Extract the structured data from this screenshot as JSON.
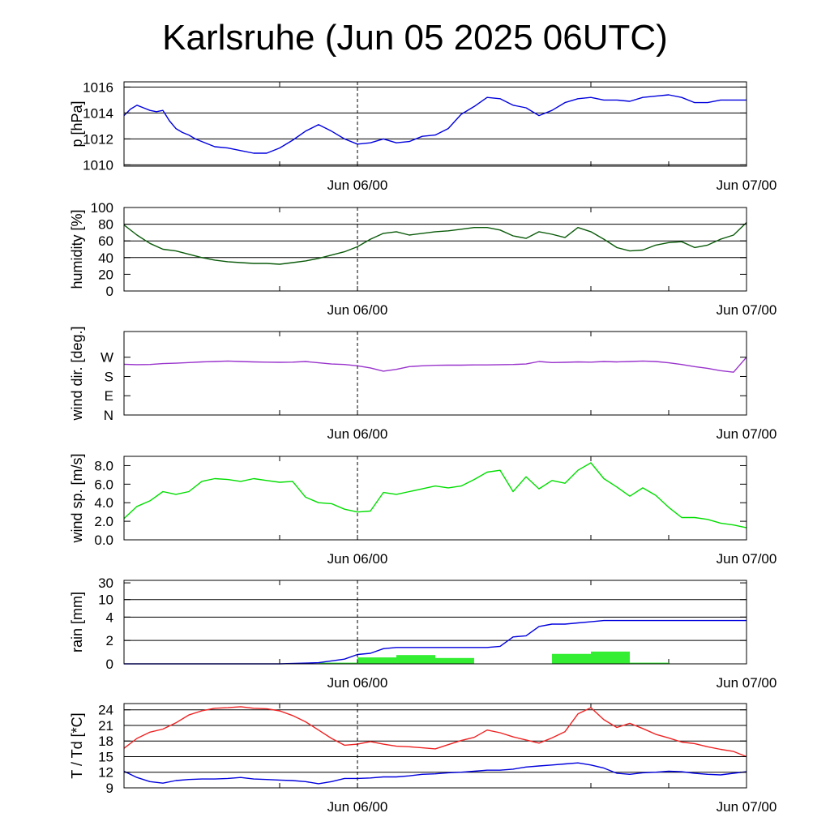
{
  "title": "Karlsruhe (Jun 05 2025 06UTC)",
  "chart_data": [
    {
      "type": "line",
      "ylabel": "p [hPa]",
      "x_ticks": [
        "Jun 06/00",
        "Jun 07/00"
      ],
      "ylim": [
        1009.9,
        1016.4
      ],
      "y_ticks": [
        1010,
        1012,
        1014,
        1016
      ],
      "y_tick_labels": [
        "1010",
        "1012",
        "1014",
        "1016"
      ],
      "grid_lines": [
        1010,
        1012,
        1014,
        1016
      ],
      "series": [
        {
          "color": "#0000dd",
          "x": [
            0,
            0.5,
            1,
            1.5,
            2,
            2.5,
            3,
            3.5,
            4,
            4.5,
            5,
            5.5,
            6,
            7,
            8,
            9,
            10,
            11,
            12,
            13,
            14,
            15,
            16,
            17,
            18,
            19,
            20,
            21,
            22,
            23,
            24,
            25,
            26,
            27,
            28,
            29,
            30,
            31,
            32,
            33,
            34,
            35,
            36,
            37,
            38,
            39,
            40,
            41,
            42,
            43,
            44,
            45,
            46,
            47,
            48
          ],
          "y": [
            1013.8,
            1014.3,
            1014.6,
            1014.4,
            1014.2,
            1014.1,
            1014.2,
            1013.4,
            1012.8,
            1012.5,
            1012.3,
            1012.0,
            1011.8,
            1011.4,
            1011.3,
            1011.1,
            1010.9,
            1010.9,
            1011.3,
            1011.9,
            1012.6,
            1013.1,
            1012.6,
            1012.0,
            1011.6,
            1011.7,
            1012.0,
            1011.7,
            1011.8,
            1012.2,
            1012.3,
            1012.8,
            1013.9,
            1014.5,
            1015.2,
            1015.1,
            1014.6,
            1014.4,
            1013.8,
            1014.2,
            1014.8,
            1015.1,
            1015.2,
            1015.0,
            1015.0,
            1014.9,
            1015.2,
            1015.3,
            1015.4,
            1015.2,
            1014.8,
            1014.8,
            1015.0,
            1015.0,
            1015.0
          ]
        }
      ]
    },
    {
      "type": "line",
      "ylabel": "humidity [%]",
      "x_ticks": [
        "Jun 06/00",
        "Jun 07/00"
      ],
      "ylim": [
        0,
        100
      ],
      "y_ticks": [
        0,
        20,
        40,
        60,
        80,
        100
      ],
      "y_tick_labels": [
        "0",
        "20",
        "40",
        "60",
        "80",
        "100"
      ],
      "grid_lines": [
        40,
        60,
        80
      ],
      "series": [
        {
          "color": "#0a5a0a",
          "x": [
            0,
            1,
            2,
            3,
            4,
            5,
            6,
            7,
            8,
            9,
            10,
            11,
            12,
            13,
            14,
            15,
            16,
            17,
            18,
            19,
            20,
            21,
            22,
            23,
            24,
            25,
            26,
            27,
            28,
            29,
            30,
            31,
            32,
            33,
            34,
            35,
            36,
            37,
            38,
            39,
            40,
            41,
            42,
            43,
            44,
            45,
            46,
            47,
            48
          ],
          "y": [
            79,
            67,
            57,
            50,
            48,
            44,
            40,
            37,
            35,
            34,
            33,
            33,
            32,
            34,
            36,
            39,
            43,
            47,
            53,
            62,
            69,
            71,
            67,
            69,
            71,
            72,
            74,
            76,
            76,
            73,
            66,
            63,
            71,
            68,
            64,
            76,
            71,
            62,
            52,
            48,
            49,
            55,
            58,
            59,
            52,
            55,
            62,
            67,
            82
          ]
        }
      ]
    },
    {
      "type": "line",
      "ylabel": "wind dir. [deg.]",
      "x_ticks": [
        "Jun 06/00",
        "Jun 07/00"
      ],
      "ylim": [
        0,
        390
      ],
      "y_ticks": [
        0,
        90,
        180,
        270
      ],
      "y_tick_labels": [
        "N",
        "E",
        "S",
        "W"
      ],
      "grid_lines": [],
      "series": [
        {
          "color": "#9933cc",
          "x": [
            0,
            1,
            2,
            3,
            4,
            5,
            6,
            7,
            8,
            9,
            10,
            11,
            12,
            13,
            14,
            15,
            16,
            17,
            18,
            19,
            20,
            21,
            22,
            23,
            24,
            25,
            26,
            27,
            28,
            29,
            30,
            31,
            32,
            33,
            34,
            35,
            36,
            37,
            38,
            39,
            40,
            41,
            42,
            43,
            44,
            45,
            46,
            47,
            48
          ],
          "y": [
            237,
            235,
            236,
            240,
            242,
            245,
            248,
            250,
            252,
            250,
            248,
            247,
            246,
            247,
            250,
            244,
            238,
            236,
            230,
            220,
            205,
            213,
            226,
            230,
            232,
            233,
            233,
            234,
            234,
            235,
            236,
            238,
            250,
            245,
            246,
            248,
            247,
            250,
            248,
            250,
            252,
            250,
            244,
            236,
            226,
            218,
            207,
            200,
            270
          ]
        }
      ]
    },
    {
      "type": "line",
      "ylabel": "wind sp. [m/s]",
      "x_ticks": [
        "Jun 06/00",
        "Jun 07/00"
      ],
      "ylim": [
        0,
        9
      ],
      "y_ticks": [
        0,
        2,
        4,
        6,
        8
      ],
      "y_tick_labels": [
        "0.0",
        "2.0",
        "4.0",
        "6.0",
        "8.0"
      ],
      "grid_lines": [],
      "series": [
        {
          "color": "#00dd00",
          "x": [
            0,
            1,
            2,
            3,
            4,
            5,
            6,
            7,
            8,
            9,
            10,
            11,
            12,
            13,
            14,
            15,
            16,
            17,
            18,
            19,
            20,
            21,
            22,
            23,
            24,
            25,
            26,
            27,
            28,
            29,
            30,
            31,
            32,
            33,
            34,
            35,
            36,
            37,
            38,
            39,
            40,
            41,
            42,
            43,
            44,
            45,
            46,
            47,
            48
          ],
          "y": [
            2.3,
            3.6,
            4.2,
            5.2,
            4.9,
            5.2,
            6.3,
            6.6,
            6.5,
            6.3,
            6.6,
            6.4,
            6.2,
            6.3,
            4.6,
            4.0,
            3.9,
            3.3,
            3.0,
            3.1,
            5.1,
            4.9,
            5.2,
            5.5,
            5.8,
            5.6,
            5.8,
            6.5,
            7.3,
            7.5,
            5.2,
            6.8,
            5.5,
            6.4,
            6.1,
            7.5,
            8.3,
            6.6,
            5.7,
            4.7,
            5.6,
            4.8,
            3.5,
            2.4,
            2.4,
            2.2,
            1.8,
            1.6,
            1.3
          ]
        }
      ]
    },
    {
      "type": "bar+line",
      "ylabel": "rain [mm]",
      "x_ticks": [
        "Jun 06/00",
        "Jun 07/00"
      ],
      "y_ticks": [
        0,
        2,
        4,
        10,
        30
      ],
      "y_tick_labels": [
        "0",
        "2",
        "4",
        "10",
        "30"
      ],
      "grid_lines": [
        2,
        4,
        10
      ],
      "bars": {
        "color": "#33ee33",
        "ranges": [
          [
            15,
            18
          ],
          [
            18,
            21
          ],
          [
            21,
            24
          ],
          [
            24,
            27
          ],
          [
            33,
            36
          ],
          [
            36,
            39
          ],
          [
            39,
            42
          ]
        ],
        "values": [
          0.1,
          0.55,
          0.75,
          0.5,
          0.85,
          1.05,
          0.1
        ]
      },
      "series": [
        {
          "color": "#0000dd",
          "x": [
            0,
            12,
            15,
            17,
            18,
            19,
            20,
            21,
            22,
            23,
            24,
            25,
            26,
            27,
            28,
            29,
            30,
            31,
            32,
            33,
            34,
            35,
            36,
            37,
            40,
            44,
            48
          ],
          "y": [
            0,
            0,
            0.1,
            0.4,
            0.8,
            0.9,
            1.3,
            1.4,
            1.4,
            1.4,
            1.4,
            1.4,
            1.4,
            1.4,
            1.4,
            1.5,
            2.3,
            2.4,
            3.2,
            3.4,
            3.4,
            3.5,
            3.6,
            3.7,
            3.7,
            3.7,
            3.7
          ]
        }
      ]
    },
    {
      "type": "line",
      "ylabel": "T / Td [*C]",
      "x_ticks": [
        "Jun 06/00",
        "Jun 07/00"
      ],
      "ylim": [
        9,
        25.2
      ],
      "y_ticks": [
        9,
        12,
        15,
        18,
        21,
        24
      ],
      "y_tick_labels": [
        "9",
        "12",
        "15",
        "18",
        "21",
        "24"
      ],
      "grid_lines": [
        9,
        12,
        15,
        18,
        21,
        24
      ],
      "series": [
        {
          "color": "#ee2222",
          "x": [
            0,
            1,
            2,
            3,
            4,
            5,
            6,
            7,
            8,
            9,
            10,
            11,
            12,
            13,
            14,
            15,
            16,
            17,
            18,
            19,
            20,
            21,
            22,
            23,
            24,
            25,
            26,
            27,
            28,
            29,
            30,
            31,
            32,
            33,
            34,
            35,
            36,
            37,
            38,
            39,
            40,
            41,
            42,
            43,
            44,
            45,
            46,
            47,
            48
          ],
          "y": [
            16.6,
            18.5,
            19.7,
            20.3,
            21.5,
            23.0,
            23.8,
            24.3,
            24.4,
            24.6,
            24.3,
            24.2,
            23.8,
            22.9,
            21.7,
            20.1,
            18.5,
            17.2,
            17.4,
            17.9,
            17.4,
            17.0,
            16.9,
            16.7,
            16.5,
            17.3,
            18.1,
            18.7,
            20.1,
            19.6,
            18.8,
            18.2,
            17.6,
            18.6,
            19.8,
            23.2,
            24.4,
            22.1,
            20.6,
            21.4,
            20.4,
            19.3,
            18.6,
            17.8,
            17.5,
            16.9,
            16.4,
            16.0,
            15.0
          ]
        },
        {
          "color": "#0000dd",
          "x": [
            0,
            1,
            2,
            3,
            4,
            5,
            6,
            7,
            8,
            9,
            10,
            11,
            12,
            13,
            14,
            15,
            16,
            17,
            18,
            19,
            20,
            21,
            22,
            23,
            24,
            25,
            26,
            27,
            28,
            29,
            30,
            31,
            32,
            33,
            34,
            35,
            36,
            37,
            38,
            39,
            40,
            41,
            42,
            43,
            44,
            45,
            46,
            47,
            48
          ],
          "y": [
            12.2,
            11.0,
            10.2,
            9.9,
            10.4,
            10.6,
            10.7,
            10.7,
            10.8,
            11.0,
            10.7,
            10.6,
            10.5,
            10.4,
            10.2,
            9.8,
            10.2,
            10.8,
            10.8,
            10.9,
            11.1,
            11.1,
            11.3,
            11.6,
            11.7,
            11.9,
            12.0,
            12.2,
            12.4,
            12.4,
            12.6,
            13.0,
            13.2,
            13.4,
            13.6,
            13.8,
            13.4,
            12.8,
            11.8,
            11.6,
            11.9,
            12.0,
            12.2,
            12.1,
            11.8,
            11.6,
            11.5,
            11.8,
            12.1
          ]
        }
      ]
    }
  ]
}
